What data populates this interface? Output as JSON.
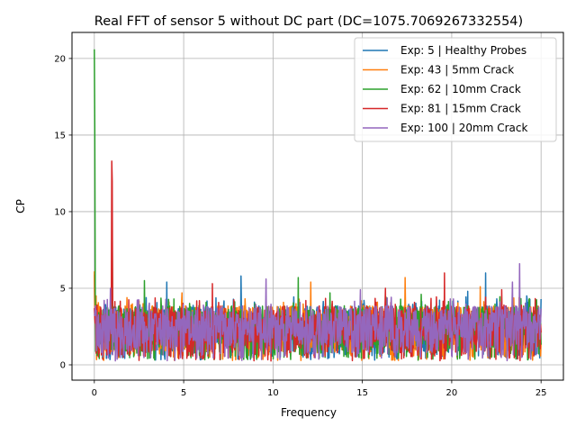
{
  "chart_data": {
    "type": "line",
    "title": "Real FFT of sensor 5 without DC part (DC=1075.7069267332554)",
    "xlabel": "Frequency",
    "ylabel": "CP",
    "xlim": [
      -1.25,
      26.25
    ],
    "ylim": [
      -1.0,
      21.7
    ],
    "xticks": [
      0,
      5,
      10,
      15,
      20,
      25
    ],
    "xtick_labels": [
      "0",
      "5",
      "10",
      "15",
      "20",
      "25"
    ],
    "yticks": [
      0,
      5,
      10,
      15,
      20
    ],
    "ytick_labels": [
      "0",
      "5",
      "10",
      "15",
      "20"
    ],
    "grid": true,
    "legend_position": "upper right",
    "series": [
      {
        "name": "Exp: 5 | Healthy Probes",
        "color": "#1f77b4",
        "seed": 5,
        "points": [
          [
            0,
            5.9
          ],
          [
            0.05,
            4.3
          ],
          [
            0.98,
            5.5
          ],
          [
            4.05,
            5.4
          ],
          [
            8.2,
            5.8
          ],
          [
            20.9,
            4.8
          ],
          [
            21.9,
            6.0
          ],
          [
            24.2,
            4.5
          ]
        ]
      },
      {
        "name": "Exp: 43 | 5mm Crack",
        "color": "#ff7f0e",
        "seed": 43,
        "points": [
          [
            0,
            6.1
          ],
          [
            0.1,
            4.5
          ],
          [
            4.9,
            4.7
          ],
          [
            12.1,
            5.4
          ],
          [
            17.4,
            5.7
          ],
          [
            21.6,
            5.1
          ]
        ]
      },
      {
        "name": "Exp: 62 | 10mm Crack",
        "color": "#2ca02c",
        "seed": 62,
        "points": [
          [
            0,
            20.6
          ],
          [
            0.02,
            15.5
          ],
          [
            0.05,
            5.2
          ],
          [
            1.0,
            8.1
          ],
          [
            2.8,
            5.5
          ],
          [
            11.4,
            5.7
          ],
          [
            13.2,
            4.7
          ],
          [
            18.3,
            4.6
          ]
        ]
      },
      {
        "name": "Exp: 81 | 15mm Crack",
        "color": "#d62728",
        "seed": 81,
        "points": [
          [
            0,
            3.7
          ],
          [
            0.97,
            13.3
          ],
          [
            1.0,
            12.0
          ],
          [
            6.6,
            5.3
          ],
          [
            19.6,
            6.0
          ],
          [
            16.3,
            5.0
          ],
          [
            22.8,
            4.9
          ]
        ]
      },
      {
        "name": "Exp: 100 | 20mm Crack",
        "color": "#9467bd",
        "seed": 100,
        "points": [
          [
            0,
            3.3
          ],
          [
            0.9,
            5.0
          ],
          [
            9.6,
            5.6
          ],
          [
            23.8,
            6.6
          ],
          [
            23.4,
            5.4
          ],
          [
            14.9,
            4.9
          ]
        ]
      }
    ],
    "x_range": [
      0,
      25
    ]
  }
}
